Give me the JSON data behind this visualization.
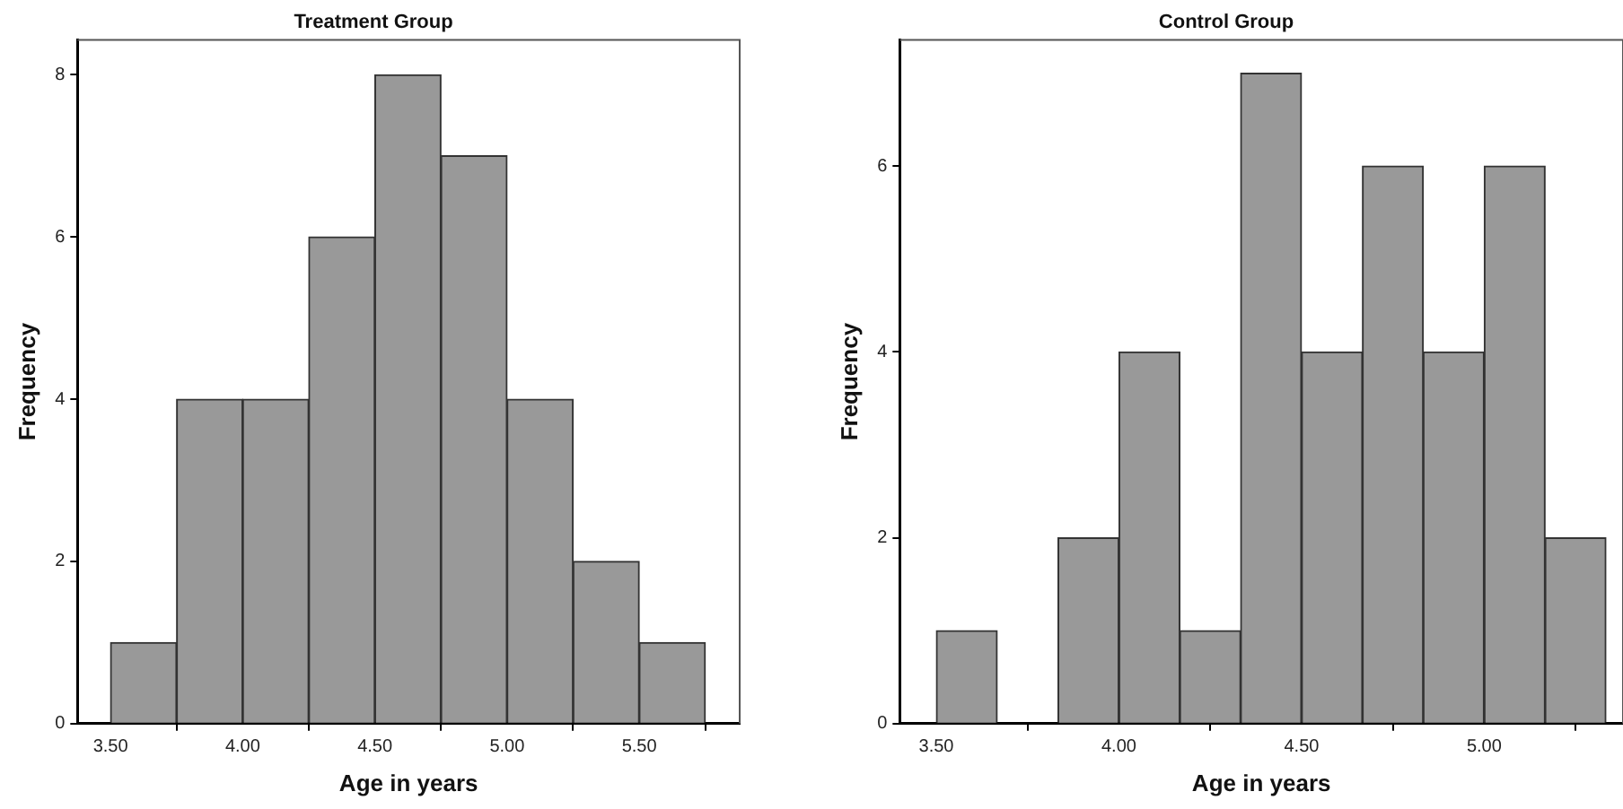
{
  "chart_data": [
    {
      "type": "histogram",
      "title": "Treatment Group",
      "xlabel": "Age in years",
      "ylabel": "Frequency",
      "color": "#999999",
      "grid": false,
      "bins": [
        3.5,
        3.75,
        4.0,
        4.25,
        4.5,
        4.75,
        5.0,
        5.25,
        5.5,
        5.75
      ],
      "values": [
        1,
        4,
        4,
        6,
        8,
        7,
        4,
        2,
        1
      ],
      "xlim": [
        3.375,
        5.88
      ],
      "ylim": [
        0,
        8.43
      ],
      "xticks": [
        {
          "value": 3.5,
          "label": "3.50"
        },
        {
          "value": 4.0,
          "label": "4.00"
        },
        {
          "value": 4.5,
          "label": "4.50"
        },
        {
          "value": 5.0,
          "label": "5.00"
        },
        {
          "value": 5.5,
          "label": "5.50"
        }
      ],
      "yticks": [
        0,
        2,
        4,
        6,
        8
      ]
    },
    {
      "type": "histogram",
      "title": "Control Group",
      "xlabel": "Age in years",
      "ylabel": "Frequency",
      "color": "#999999",
      "grid": false,
      "bins": [
        3.5,
        3.667,
        3.833,
        4.0,
        4.167,
        4.333,
        4.5,
        4.667,
        4.833,
        5.0,
        5.167,
        5.333
      ],
      "values": [
        1,
        0,
        2,
        4,
        1,
        7,
        4,
        6,
        4,
        6,
        2
      ],
      "xlim": [
        3.4,
        5.38
      ],
      "ylim": [
        0,
        7.36
      ],
      "xticks": [
        {
          "value": 3.5,
          "label": "3.50"
        },
        {
          "value": 4.0,
          "label": "4.00"
        },
        {
          "value": 4.5,
          "label": "4.50"
        },
        {
          "value": 5.0,
          "label": "5.00"
        }
      ],
      "yticks": [
        0,
        2,
        4,
        6
      ]
    }
  ]
}
